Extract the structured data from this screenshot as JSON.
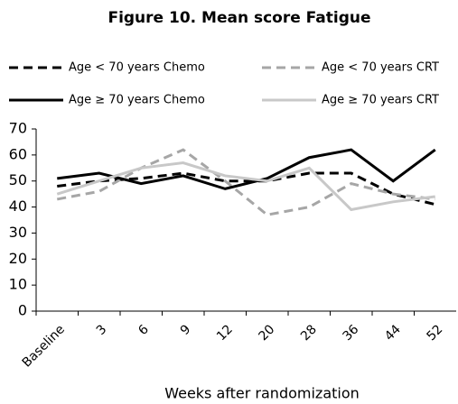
{
  "chart_data": {
    "type": "line",
    "title": "Figure 10. Mean score Fatigue",
    "x_label": "Weeks after randomization",
    "categories": [
      "Baseline",
      "3",
      "6",
      "9",
      "12",
      "20",
      "28",
      "36",
      "44",
      "52"
    ],
    "series": [
      {
        "name": "Age < 70 years Chemo",
        "color": "#000000",
        "dashed": true,
        "values": [
          48,
          50,
          51,
          53,
          50,
          50,
          53,
          53,
          45,
          41
        ]
      },
      {
        "name": "Age < 70 years CRT",
        "color": "#a6a6a6",
        "dashed": true,
        "values": [
          43,
          46,
          55,
          62,
          50,
          37,
          40,
          49,
          45,
          43
        ]
      },
      {
        "name": "Age ≥ 70 years Chemo",
        "color": "#000000",
        "dashed": false,
        "values": [
          51,
          53,
          49,
          52,
          47,
          51,
          59,
          62,
          50,
          62
        ]
      },
      {
        "name": "Age ≥ 70 years CRT",
        "color": "#c8c8c8",
        "dashed": false,
        "values": [
          45,
          50,
          55,
          57,
          52,
          50,
          55,
          39,
          42,
          44
        ]
      }
    ],
    "ylim": [
      0,
      70
    ],
    "yticks": [
      0,
      10,
      20,
      30,
      40,
      50,
      60,
      70
    ],
    "grid": false,
    "legend": "top"
  }
}
